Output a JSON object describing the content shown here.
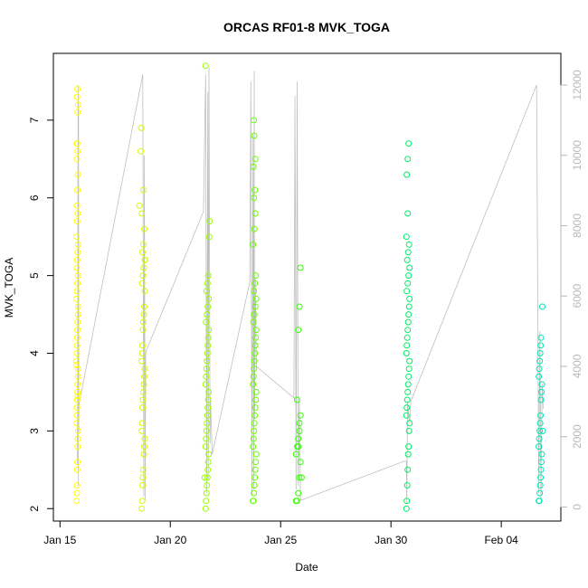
{
  "chart_data": {
    "type": "scatter",
    "title": "ORCAS RF01-8 MVK_TOGA",
    "xlabel": "Date",
    "ylabel": "MVK_TOGA",
    "x_ticks": [
      "Jan 15",
      "Jan 20",
      "Jan 25",
      "Jan 30",
      "Feb 04"
    ],
    "x_tick_values": [
      0,
      5,
      10,
      15,
      20
    ],
    "xlim": [
      -0.3,
      22.7
    ],
    "ylim": [
      1.84,
      7.86
    ],
    "y_ticks": [
      2,
      3,
      4,
      5,
      6,
      7
    ],
    "y2_ticks": [
      0,
      2000,
      4000,
      6000,
      8000,
      10000,
      12000
    ],
    "y2lim": [
      -400,
      12900
    ],
    "grid": false,
    "series": [
      {
        "color": "#ffff00",
        "x": [
          0.75,
          0.76,
          0.77,
          0.78,
          0.79,
          0.8,
          0.81,
          0.82,
          0.75,
          0.76,
          0.77,
          0.78,
          0.79,
          0.8,
          0.81,
          0.82,
          0.75,
          0.76,
          0.77,
          0.78,
          0.79,
          0.8,
          0.81,
          0.82,
          0.75,
          0.77,
          0.79,
          0.81,
          0.76,
          0.78,
          0.8,
          0.82,
          0.75,
          0.78,
          0.8,
          0.77,
          0.79,
          0.81,
          0.76,
          0.8,
          0.78,
          0.76,
          0.8,
          0.82,
          0.77,
          0.79,
          0.75,
          0.81
        ],
        "y": [
          2.1,
          2.2,
          2.3,
          2.5,
          2.6,
          2.8,
          2.9,
          3.0,
          3.1,
          3.2,
          3.3,
          3.4,
          3.5,
          3.6,
          3.7,
          3.8,
          3.9,
          4.0,
          4.1,
          4.2,
          4.3,
          4.4,
          4.5,
          4.6,
          4.7,
          4.8,
          4.9,
          5.0,
          5.1,
          5.2,
          5.3,
          5.4,
          5.5,
          5.7,
          5.8,
          5.9,
          6.1,
          6.3,
          6.5,
          6.6,
          6.7,
          6.7,
          7.1,
          7.2,
          7.3,
          7.4,
          3.85,
          3.45
        ]
      },
      {
        "color": "#ccff00",
        "x": [
          3.7,
          3.72,
          3.74,
          3.76,
          3.78,
          3.8,
          3.82,
          3.84,
          3.7,
          3.72,
          3.74,
          3.76,
          3.78,
          3.8,
          3.82,
          3.84,
          3.7,
          3.72,
          3.74,
          3.76,
          3.78,
          3.8,
          3.82,
          3.84,
          3.72,
          3.76,
          3.8,
          3.84,
          3.74,
          3.78,
          3.82,
          3.7,
          3.86,
          3.6,
          3.66,
          3.68,
          3.78
        ],
        "y": [
          2.0,
          2.1,
          2.3,
          2.4,
          2.5,
          2.7,
          2.8,
          2.9,
          3.0,
          3.1,
          3.3,
          3.4,
          3.5,
          3.6,
          3.7,
          3.8,
          3.9,
          4.0,
          4.1,
          4.3,
          4.4,
          4.5,
          4.6,
          4.8,
          4.9,
          5.0,
          5.1,
          5.2,
          5.3,
          5.4,
          5.6,
          5.8,
          5.2,
          5.9,
          6.6,
          6.9,
          6.1
        ]
      },
      {
        "color": "#99ff00",
        "x": [
          6.6,
          6.62,
          6.64,
          6.66,
          6.68,
          6.7,
          6.72,
          6.74,
          6.6,
          6.62,
          6.64,
          6.66,
          6.68,
          6.7,
          6.72,
          6.74,
          6.6,
          6.62,
          6.64,
          6.66,
          6.68,
          6.7,
          6.72,
          6.74,
          6.62,
          6.66,
          6.7,
          6.74,
          6.64,
          6.68,
          6.72,
          6.76,
          6.78,
          6.6,
          6.56
        ],
        "y": [
          2.0,
          2.1,
          2.2,
          2.3,
          2.4,
          2.5,
          2.6,
          2.7,
          2.8,
          2.9,
          3.0,
          3.1,
          3.2,
          3.3,
          3.4,
          3.5,
          3.6,
          3.7,
          3.8,
          3.9,
          4.0,
          4.1,
          4.2,
          4.3,
          4.4,
          4.5,
          4.6,
          4.7,
          4.8,
          4.9,
          5.0,
          5.5,
          5.7,
          7.7,
          2.4
        ]
      },
      {
        "color": "#66ff00",
        "x": [
          8.75,
          8.77,
          8.79,
          8.81,
          8.83,
          8.85,
          8.87,
          8.89,
          8.75,
          8.77,
          8.79,
          8.81,
          8.83,
          8.85,
          8.87,
          8.89,
          8.75,
          8.77,
          8.79,
          8.81,
          8.83,
          8.85,
          8.87,
          8.89,
          8.77,
          8.81,
          8.85,
          8.89,
          8.79,
          8.83,
          8.87,
          8.75,
          8.81,
          8.85,
          8.79,
          8.83,
          8.77,
          8.85,
          8.8,
          8.78
        ],
        "y": [
          2.1,
          2.1,
          2.2,
          2.3,
          2.4,
          2.5,
          2.6,
          2.7,
          2.8,
          2.9,
          3.0,
          3.1,
          3.2,
          3.3,
          3.4,
          3.5,
          3.6,
          3.7,
          3.8,
          3.9,
          4.0,
          4.1,
          4.2,
          4.3,
          4.4,
          4.5,
          4.6,
          4.7,
          4.8,
          4.9,
          5.0,
          5.4,
          5.6,
          5.8,
          6.0,
          6.1,
          6.4,
          6.5,
          6.8,
          7.0
        ]
      },
      {
        "color": "#33ff00",
        "x": [
          10.7,
          10.75,
          10.8,
          10.85,
          10.9,
          10.7,
          10.75,
          10.8,
          10.85,
          10.9,
          10.75,
          10.8,
          10.85,
          10.9,
          10.95,
          10.8,
          10.85
        ],
        "y": [
          2.1,
          2.1,
          2.2,
          2.4,
          2.6,
          2.7,
          2.8,
          2.9,
          3.0,
          3.2,
          3.4,
          4.3,
          4.6,
          5.1,
          2.4,
          2.8,
          3.1
        ]
      },
      {
        "color": "#00ee66",
        "x": [
          15.7,
          15.72,
          15.74,
          15.76,
          15.78,
          15.8,
          15.82,
          15.84,
          15.7,
          15.72,
          15.74,
          15.76,
          15.78,
          15.8,
          15.82,
          15.84,
          15.7,
          15.72,
          15.74,
          15.76,
          15.78,
          15.8,
          15.82,
          15.84,
          15.72,
          15.76,
          15.8,
          15.84,
          15.74,
          15.78,
          15.82,
          15.7,
          15.76,
          15.8,
          15.72,
          15.76
        ],
        "y": [
          2.0,
          2.1,
          2.3,
          2.5,
          2.7,
          2.8,
          3.0,
          3.1,
          3.2,
          3.3,
          3.4,
          3.5,
          3.6,
          3.7,
          3.8,
          3.9,
          4.0,
          4.1,
          4.2,
          4.3,
          4.4,
          4.5,
          4.6,
          4.7,
          4.8,
          4.9,
          5.0,
          5.1,
          5.2,
          5.3,
          5.4,
          5.5,
          5.8,
          6.7,
          6.3,
          6.5
        ]
      },
      {
        "color": "#00e8b0",
        "x": [
          21.7,
          21.72,
          21.74,
          21.76,
          21.78,
          21.8,
          21.82,
          21.84,
          21.7,
          21.72,
          21.74,
          21.76,
          21.78,
          21.8,
          21.82,
          21.84,
          21.7,
          21.72,
          21.74,
          21.76,
          21.78,
          21.8,
          21.86,
          21.88
        ],
        "y": [
          2.1,
          2.1,
          2.2,
          2.3,
          2.4,
          2.5,
          2.6,
          2.7,
          2.8,
          2.9,
          3.0,
          3.1,
          3.2,
          3.4,
          3.5,
          3.6,
          3.7,
          3.8,
          3.9,
          4.0,
          4.1,
          4.2,
          4.6,
          3.0
        ]
      }
    ],
    "secondary_line": {
      "color": "#bfbfbf",
      "x": [
        0.78,
        0.8,
        0.82,
        0.83,
        0.84,
        0.85,
        0.86,
        3.75,
        3.78,
        3.8,
        3.82,
        3.86,
        3.88,
        6.5,
        6.6,
        6.65,
        6.7,
        6.72,
        6.75,
        6.8,
        6.82,
        6.9,
        8.6,
        8.65,
        8.7,
        8.75,
        8.78,
        8.8,
        8.82,
        8.85,
        8.9,
        10.6,
        10.65,
        10.7,
        10.75,
        10.8,
        10.85,
        10.9,
        10.95,
        15.6,
        15.7,
        15.72,
        15.75,
        15.8,
        15.85,
        15.9,
        21.6,
        21.7,
        21.75,
        21.8,
        21.85,
        21.9
      ],
      "y2": [
        1200,
        2600,
        12000,
        600,
        11500,
        2100,
        2900,
        12300,
        5600,
        300,
        10000,
        200,
        4400,
        8400,
        12300,
        400,
        11800,
        800,
        12500,
        1800,
        3000,
        1500,
        6400,
        12100,
        300,
        10600,
        500,
        12400,
        2500,
        6500,
        4000,
        3100,
        11700,
        500,
        12100,
        600,
        3000,
        200,
        200,
        1300,
        1300,
        100,
        3000,
        2600,
        2400,
        3000,
        12000,
        400,
        5000,
        200,
        3500,
        2800
      ]
    }
  }
}
